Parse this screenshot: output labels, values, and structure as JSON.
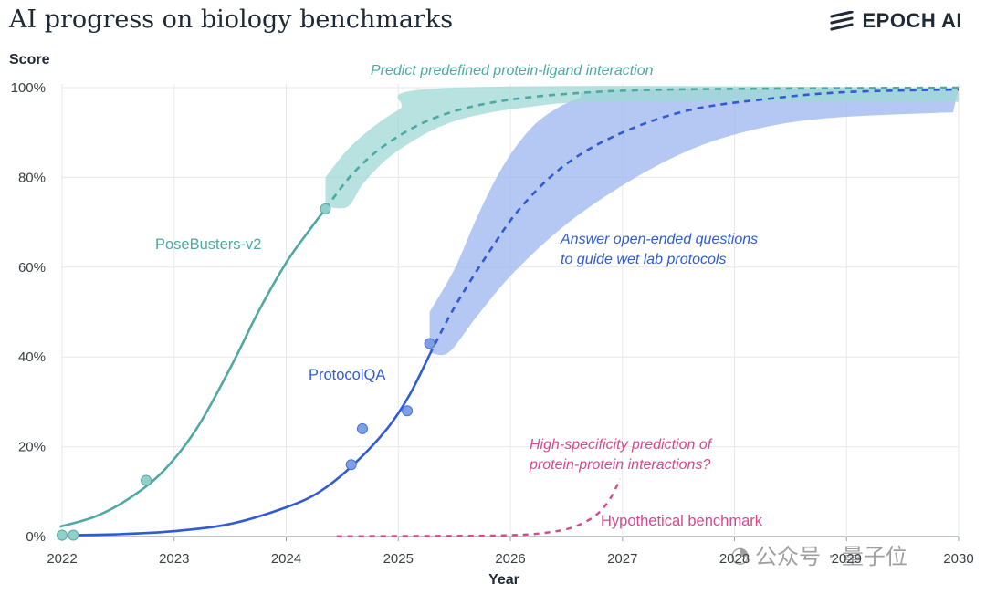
{
  "header": {
    "title": "AI progress on biology benchmarks",
    "logo_text": "EPOCH AI"
  },
  "watermark": {
    "text": "公众号 · 量子位"
  },
  "chart_data": {
    "type": "line",
    "title": "AI progress on biology benchmarks",
    "xlabel": "Year",
    "ylabel": "Score",
    "xlim": [
      2022,
      2030
    ],
    "ylim": [
      0,
      100
    ],
    "x_ticks": [
      "2022",
      "2023",
      "2024",
      "2025",
      "2026",
      "2027",
      "2028",
      "2029",
      "2030"
    ],
    "y_ticks": [
      "0%",
      "20%",
      "40%",
      "60%",
      "80%",
      "100%"
    ],
    "grid": true,
    "colors": {
      "posebusters": "#4ea8a4",
      "protocolqa": "#2f5bd6",
      "hypothetical": "#d8488f"
    },
    "series": [
      {
        "name": "PoseBusters-v2",
        "description": "Predict predefined protein-ligand interaction",
        "points": [
          {
            "x": 2022.0,
            "y": 0.3
          },
          {
            "x": 2022.1,
            "y": 0.3
          },
          {
            "x": 2022.75,
            "y": 12.5
          },
          {
            "x": 2024.35,
            "y": 73
          }
        ],
        "fit_solid": [
          [
            2021.98,
            2.2
          ],
          [
            2022.3,
            4.5
          ],
          [
            2022.6,
            8.5
          ],
          [
            2022.9,
            14.5
          ],
          [
            2023.2,
            24
          ],
          [
            2023.5,
            37.5
          ],
          [
            2023.75,
            50
          ],
          [
            2024.0,
            61
          ],
          [
            2024.2,
            68
          ],
          [
            2024.35,
            73
          ]
        ],
        "fit_dashed": [
          [
            2024.35,
            73
          ],
          [
            2024.6,
            81
          ],
          [
            2024.9,
            87.5
          ],
          [
            2025.3,
            93
          ],
          [
            2025.8,
            96.5
          ],
          [
            2026.5,
            98.6
          ],
          [
            2027.5,
            99.6
          ],
          [
            2030,
            100
          ]
        ],
        "band_upper": [
          [
            2024.35,
            80
          ],
          [
            2024.6,
            87.5
          ],
          [
            2025.0,
            95
          ],
          [
            2025.5,
            100
          ],
          [
            2030,
            100
          ]
        ],
        "band_lower": [
          [
            2024.35,
            73.5
          ],
          [
            2024.55,
            73.5
          ],
          [
            2024.7,
            79
          ],
          [
            2025.0,
            86
          ],
          [
            2025.5,
            92.5
          ],
          [
            2026.2,
            95.8
          ],
          [
            2027.0,
            96.8
          ],
          [
            2030,
            96.8
          ]
        ]
      },
      {
        "name": "ProtocolQA",
        "description": "Answer open-ended questions to guide wet lab protocols",
        "points": [
          {
            "x": 2024.58,
            "y": 16
          },
          {
            "x": 2024.68,
            "y": 24
          },
          {
            "x": 2025.08,
            "y": 28
          },
          {
            "x": 2025.28,
            "y": 43
          }
        ],
        "fit_solid": [
          [
            2022.0,
            0.3
          ],
          [
            2022.5,
            0.5
          ],
          [
            2023.0,
            1.2
          ],
          [
            2023.5,
            2.8
          ],
          [
            2024.0,
            6.5
          ],
          [
            2024.3,
            10
          ],
          [
            2024.6,
            16
          ],
          [
            2024.9,
            24
          ],
          [
            2025.1,
            31.5
          ],
          [
            2025.28,
            40.5
          ]
        ],
        "fit_dashed": [
          [
            2025.28,
            40.5
          ],
          [
            2025.5,
            51
          ],
          [
            2025.8,
            63
          ],
          [
            2026.1,
            73.5
          ],
          [
            2026.5,
            83
          ],
          [
            2027.0,
            90
          ],
          [
            2027.6,
            95
          ],
          [
            2028.3,
            97.5
          ],
          [
            2029.0,
            99
          ],
          [
            2030,
            99.6
          ]
        ],
        "band_upper": [
          [
            2025.28,
            50
          ],
          [
            2025.5,
            59.5
          ],
          [
            2025.7,
            71
          ],
          [
            2025.9,
            81
          ],
          [
            2026.1,
            88.5
          ],
          [
            2026.3,
            93.5
          ],
          [
            2026.6,
            97.5
          ],
          [
            2027.0,
            99.5
          ],
          [
            2030,
            99.8
          ]
        ],
        "band_lower": [
          [
            2025.28,
            41
          ],
          [
            2025.45,
            41
          ],
          [
            2025.7,
            49
          ],
          [
            2026.0,
            58
          ],
          [
            2026.4,
            67.5
          ],
          [
            2026.8,
            75
          ],
          [
            2027.3,
            82.5
          ],
          [
            2027.8,
            88
          ],
          [
            2028.4,
            91.8
          ],
          [
            2029.0,
            93.5
          ],
          [
            2029.95,
            94.5
          ]
        ]
      },
      {
        "name": "Hypothetical benchmark",
        "description": "High-specificity prediction of protein-protein interactions?",
        "fit_dashed": [
          [
            2024.45,
            0.05
          ],
          [
            2025.0,
            0.1
          ],
          [
            2025.5,
            0.15
          ],
          [
            2026.0,
            0.3
          ],
          [
            2026.3,
            0.8
          ],
          [
            2026.55,
            2.0
          ],
          [
            2026.75,
            4.5
          ],
          [
            2026.88,
            8
          ],
          [
            2026.98,
            12.8
          ]
        ]
      }
    ]
  },
  "annotations": {
    "posebusters_label": "PoseBusters-v2",
    "protocolqa_label": "ProtocolQA",
    "hypothetical_label": "Hypothetical benchmark",
    "posebusters_note": "Predict predefined protein-ligand interaction",
    "protocolqa_note_1": "Answer open-ended questions",
    "protocolqa_note_2": "to guide wet lab protocols",
    "hypothetical_note_1": "High-specificity prediction of",
    "hypothetical_note_2": "protein-protein interactions?"
  }
}
